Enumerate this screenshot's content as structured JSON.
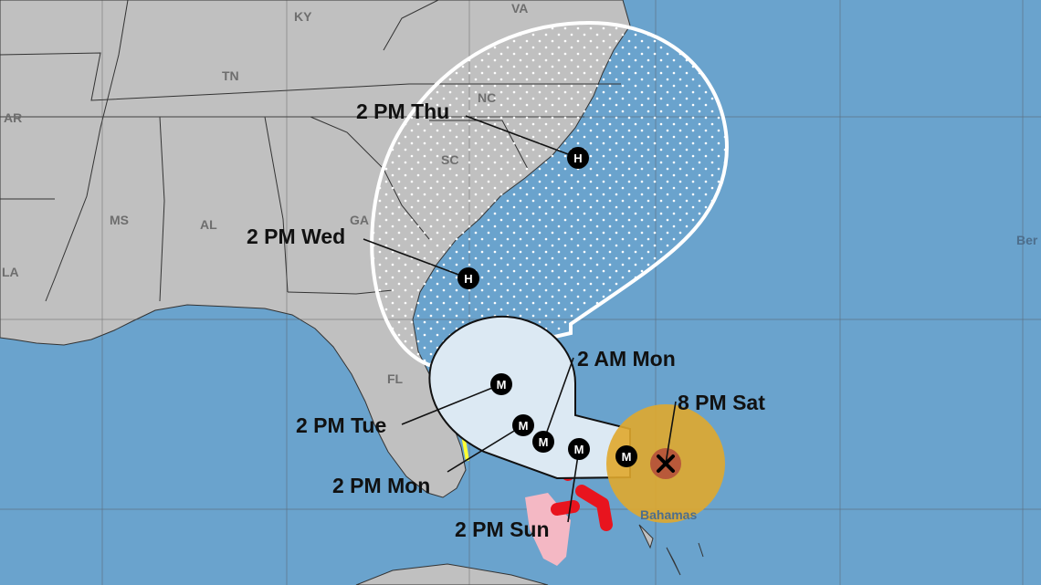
{
  "map": {
    "colors": {
      "ocean": "#6aa3cd",
      "land": "#c0c0c0",
      "cone_days_1_3": "#dce9f3",
      "cone_days_4_5_outline": "#ffffff",
      "hurricane_warning": "#e8141e",
      "tropical_storm_watch": "#f4b8c4",
      "tropical_storm_warning": "#ffff33",
      "current_wind_field": "#e0a92d",
      "hurricane_force_wind_field": "#b5503a"
    },
    "states": [
      "KY",
      "VA",
      "TN",
      "NC",
      "AR",
      "SC",
      "MS",
      "AL",
      "GA",
      "LA",
      "FL"
    ],
    "places": {
      "bahamas": "Bahamas",
      "bermuda": "Ber"
    },
    "current_position": {
      "label": "8 PM Sat",
      "icon": "x-icon"
    },
    "forecast_points": [
      {
        "label": "2 PM Sun",
        "marker": "M"
      },
      {
        "label": "2 AM Mon",
        "marker": "M"
      },
      {
        "label": "2 PM Mon",
        "marker": "M"
      },
      {
        "label": "",
        "marker": "M"
      },
      {
        "label": "2 PM Tue",
        "marker": "M"
      },
      {
        "label": "2 PM Wed",
        "marker": "H"
      },
      {
        "label": "2 PM Thu",
        "marker": "H"
      }
    ]
  }
}
